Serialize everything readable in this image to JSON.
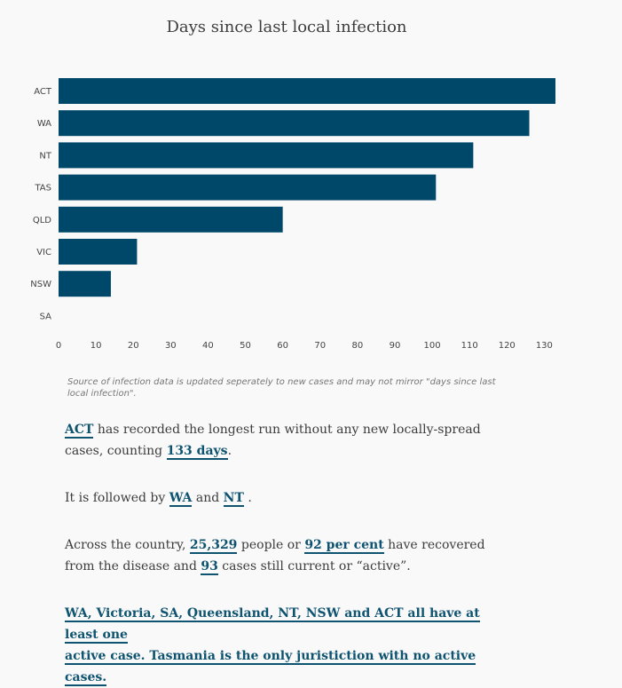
{
  "chart_data": {
    "type": "bar",
    "orientation": "horizontal",
    "title": "Days since last local infection",
    "categories": [
      "ACT",
      "WA",
      "NT",
      "TAS",
      "QLD",
      "VIC",
      "NSW",
      "SA"
    ],
    "values": [
      133,
      126,
      111,
      101,
      60,
      21,
      14,
      0
    ],
    "xlim": [
      0,
      133
    ],
    "xticks": [
      0,
      10,
      20,
      30,
      40,
      50,
      60,
      70,
      80,
      90,
      100,
      110,
      120,
      130
    ],
    "bar_color": "#00486a",
    "grid": false
  },
  "source_note": "Source of infection data is updated seperately to new cases and may not mirror \"days since last local infection\".",
  "para1": {
    "state": "ACT",
    "text_a": " has recorded the longest run without any new locally-spread cases, counting ",
    "days": "133 days",
    "text_b": "."
  },
  "para2": {
    "text_a": "It is followed by ",
    "state1": "WA",
    "text_b": " and ",
    "state2": "NT",
    "text_c": " ."
  },
  "para3": {
    "text_a": "Across the country, ",
    "recovered": "25,329",
    "text_b": " people or ",
    "percent": "92 per cent",
    "text_c": " have recovered from the disease and ",
    "active": "93",
    "text_d": " cases still current or “active”."
  },
  "para4": {
    "line1": "WA, Victoria, SA, Queensland, NT, NSW and ACT all have at least one",
    "line2": "active case. Tasmania is the only juristiction with no active cases."
  }
}
